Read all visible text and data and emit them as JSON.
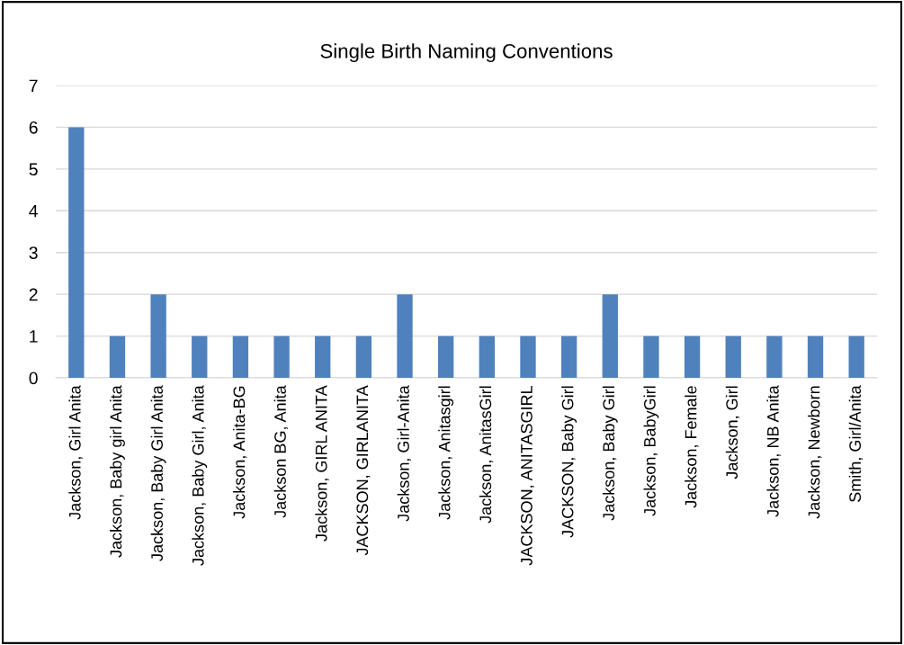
{
  "chart_data": {
    "type": "bar",
    "title": "Single Birth Naming Conventions",
    "categories": [
      "Jackson, Girl Anita",
      "Jackson, Baby girl Anita",
      "Jackson, Baby Girl Anita",
      "Jackson, Baby Girl, Anita",
      "Jackson, Anita-BG",
      "Jackson BG, Anita",
      "Jackson, GIRL ANITA",
      "JACKSON, GIRLANITA",
      "Jackson, Girl-Anita",
      "Jackson, Anitasgirl",
      "Jackson, AnitasGirl",
      "JACKSON, ANITASGIRL",
      "JACKSON, Baby Girl",
      "Jackson, Baby Girl",
      "Jackson, BabyGirl",
      "Jackson, Female",
      "Jackson, Girl",
      "Jackson, NB Anita",
      "Jackson, Newborn",
      "Smith, Girl/Anita"
    ],
    "values": [
      6,
      1,
      2,
      1,
      1,
      1,
      1,
      1,
      2,
      1,
      1,
      1,
      1,
      2,
      1,
      1,
      1,
      1,
      1,
      1
    ],
    "color": "#4f81bd",
    "ylim": [
      0,
      7
    ],
    "yticks": [
      0,
      1,
      2,
      3,
      4,
      5,
      6,
      7
    ],
    "grid": "y",
    "legend": false
  }
}
